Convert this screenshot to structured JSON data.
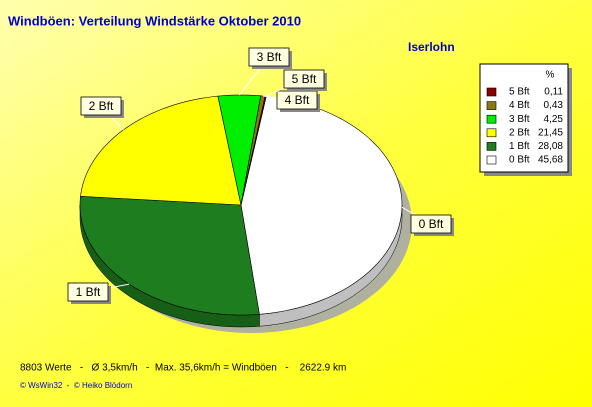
{
  "chart_data": {
    "type": "pie3d",
    "title": "Windböen: Verteilung Windstärke  Oktober 2010",
    "subtitle": "Iserlohn",
    "categories": [
      "0 Bft",
      "1 Bft",
      "2 Bft",
      "3 Bft",
      "4 Bft",
      "5 Bft"
    ],
    "values": [
      45.68,
      28.08,
      21.45,
      4.25,
      0.43,
      0.11
    ],
    "value_labels": [
      "45,68",
      "28,08",
      "21,45",
      "4,25",
      "0,43",
      "0,11"
    ],
    "colors": [
      "#ffffff",
      "#1e7d1e",
      "#ffff00",
      "#00ee00",
      "#8b7a10",
      "#8b0000"
    ],
    "legend_title": "%",
    "footer": "8803 Werte   -   Ø 3,5km/h   -  Max. 35,6km/h = Windböen   -    2622.9 km",
    "credit": "© WsWin32  -  © Heiko Blödorn"
  }
}
